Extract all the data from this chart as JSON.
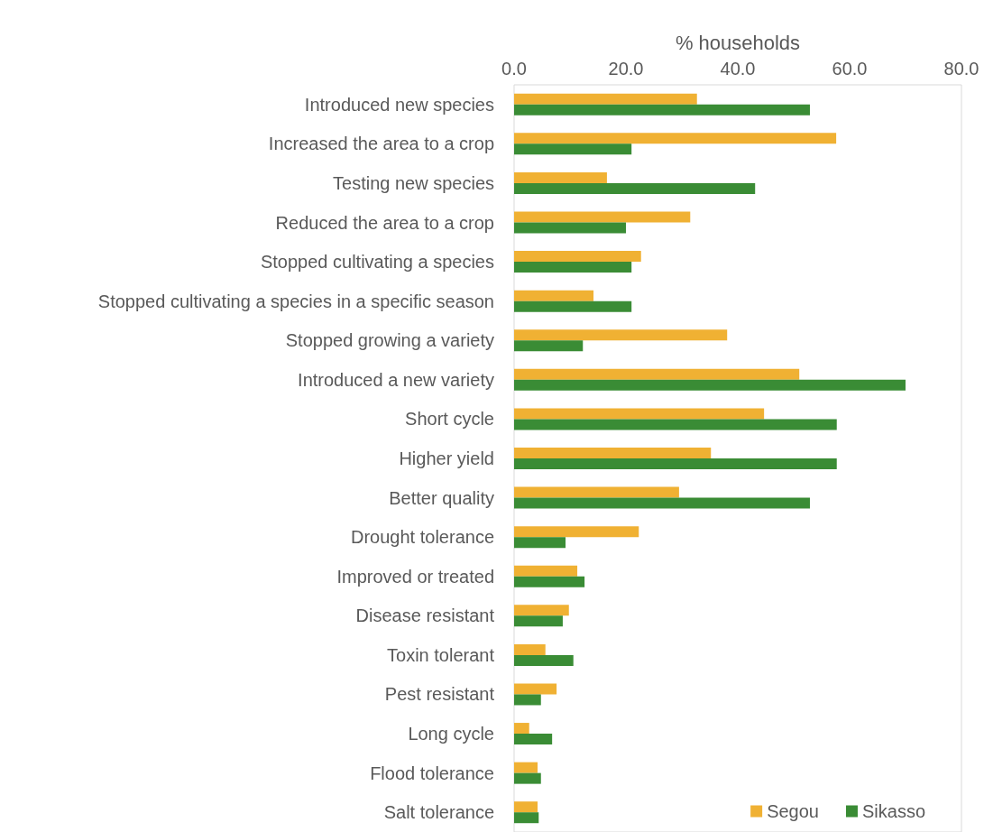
{
  "chart_data": {
    "type": "bar",
    "orientation": "horizontal",
    "xlabel": "% households",
    "categories": [
      "Introduced new species",
      "Increased the area to a crop",
      "Testing new species",
      "Reduced the area to a crop",
      "Stopped cultivating a species",
      "Stopped cultivating a species in a specific season",
      "Stopped growing a variety",
      "Introduced a new variety",
      "Short cycle",
      "Higher yield",
      "Better quality",
      "Drought tolerance",
      "Improved or treated",
      "Disease resistant",
      "Toxin tolerant",
      "Pest resistant",
      "Long cycle",
      "Flood tolerance",
      "Salt tolerance"
    ],
    "series": [
      {
        "name": "Segou",
        "color": "#f0b133",
        "values": [
          32.7,
          57.6,
          16.6,
          31.5,
          22.7,
          14.2,
          38.1,
          51.0,
          44.7,
          35.2,
          29.5,
          22.3,
          11.3,
          9.8,
          5.6,
          7.6,
          2.7,
          4.2,
          4.2
        ]
      },
      {
        "name": "Sikasso",
        "color": "#3a8c35",
        "values": [
          52.9,
          21.0,
          43.1,
          20.0,
          21.0,
          21.0,
          12.3,
          70.0,
          57.7,
          57.7,
          52.9,
          9.2,
          12.6,
          8.7,
          10.6,
          4.8,
          6.8,
          4.8,
          4.4
        ]
      }
    ],
    "xlim": [
      0,
      80
    ],
    "xticks": [
      {
        "value": 0,
        "label": "0.0"
      },
      {
        "value": 20,
        "label": "20.0"
      },
      {
        "value": 40,
        "label": "40.0"
      },
      {
        "value": 60,
        "label": "60.0"
      },
      {
        "value": 80,
        "label": "80.0"
      }
    ],
    "grid": false,
    "legend": "bottom right"
  }
}
